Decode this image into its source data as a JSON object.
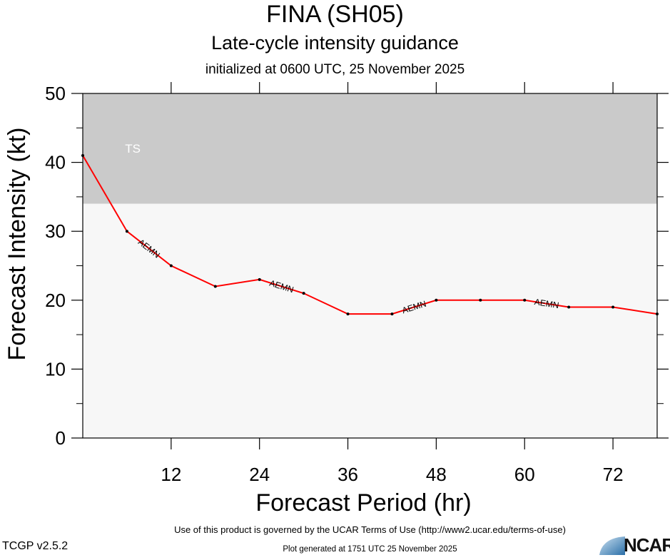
{
  "header": {
    "title": "FINA (SH05)",
    "subtitle": "Late-cycle intensity guidance",
    "initialized": "initialized at 0600 UTC, 25 November 2025"
  },
  "footer": {
    "terms": "Use of this product is governed by the UCAR Terms of Use (http://www2.ucar.edu/terms-of-use)",
    "version": "TCGP v2.5.2",
    "generated": "Plot generated at 1751 UTC   25 November 2025",
    "logo_text": "NCAR"
  },
  "colors": {
    "ts_band": "#cacaca",
    "below_band": "#f7f7f7",
    "series_line": "#ff0000",
    "band_label": "#ffffff"
  },
  "chart_data": {
    "type": "line",
    "xlabel": "Forecast Period (hr)",
    "ylabel": "Forecast Intensity (kt)",
    "xlim": [
      0,
      78
    ],
    "ylim": [
      0,
      50
    ],
    "x_ticks": [
      12,
      24,
      36,
      48,
      60,
      72
    ],
    "y_ticks": [
      0,
      10,
      20,
      30,
      40,
      50
    ],
    "grid": false,
    "bands": [
      {
        "label": "TS",
        "from": 34,
        "to": 50
      }
    ],
    "series": [
      {
        "name": "AEMN",
        "x": [
          0,
          6,
          12,
          18,
          24,
          30,
          36,
          42,
          48,
          54,
          60,
          66,
          72,
          78
        ],
        "values": [
          41,
          30,
          25,
          22,
          23,
          21,
          18,
          18,
          20,
          20,
          20,
          19,
          19,
          18
        ],
        "labels_at_x": [
          12,
          30,
          48,
          66
        ]
      }
    ]
  }
}
